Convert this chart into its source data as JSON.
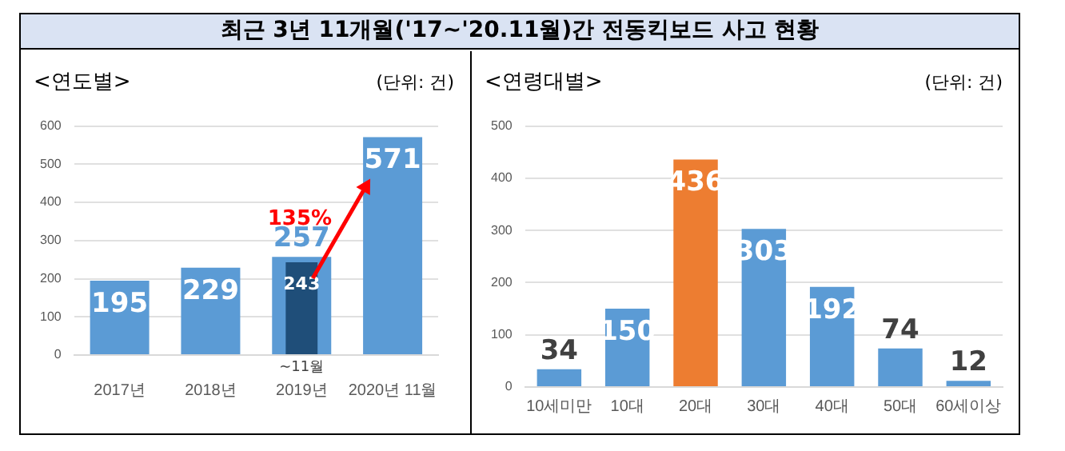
{
  "chart_data": [
    {
      "type": "bar",
      "title": "최근 3년 11개월('17~'20.11월)간 전동킥보드 사고 현황",
      "subtitle": "<연도별>",
      "categories": [
        "2017년",
        "2018년",
        "2019년",
        "2020년 11월"
      ],
      "series": [
        {
          "values": [
            195,
            229,
            257,
            571
          ],
          "color": "#5b9bd5"
        },
        {
          "values": [
            null,
            null,
            243,
            null
          ],
          "color": "#1f4e79"
        }
      ],
      "ylim": [
        0,
        600
      ],
      "yticks": [
        0,
        100,
        200,
        300,
        400,
        500,
        600
      ],
      "grid": "y",
      "legend": false,
      "data_labels": true,
      "annotations": [
        "(단위: 건)",
        "135%",
        {
          "text": "~11월",
          "x": "2019년",
          "y": 0
        }
      ]
    },
    {
      "type": "bar",
      "title": "<연령대별>",
      "categories": [
        "10세미만",
        "10대",
        "20대",
        "30대",
        "40대",
        "50대",
        "60세이상"
      ],
      "values": [
        34,
        150,
        436,
        303,
        192,
        74,
        12
      ],
      "colors": [
        "#5b9bd5",
        "#5b9bd5",
        "#ed7d31",
        "#5b9bd5",
        "#5b9bd5",
        "#5b9bd5",
        "#5b9bd5"
      ],
      "ylim": [
        0,
        500
      ],
      "yticks": [
        0,
        100,
        200,
        300,
        400,
        500
      ],
      "grid": "y",
      "legend": false,
      "data_labels": true,
      "annotations": [
        "(단위: 건)"
      ]
    }
  ]
}
